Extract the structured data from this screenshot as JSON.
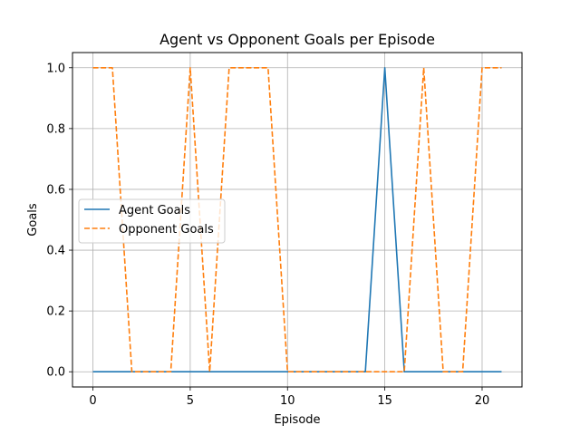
{
  "chart_data": {
    "type": "line",
    "title": "Agent vs Opponent Goals per Episode",
    "xlabel": "Episode",
    "ylabel": "Goals",
    "xlim": [
      -1.05,
      22.05
    ],
    "ylim": [
      -0.05,
      1.05
    ],
    "xticks": [
      0,
      5,
      10,
      15,
      20
    ],
    "yticks": [
      0.0,
      0.2,
      0.4,
      0.6,
      0.8,
      1.0
    ],
    "xtick_labels": [
      "0",
      "5",
      "10",
      "15",
      "20"
    ],
    "ytick_labels": [
      "0.0",
      "0.2",
      "0.4",
      "0.6",
      "0.8",
      "1.0"
    ],
    "grid": true,
    "legend_position": "center-left",
    "x": [
      0,
      1,
      2,
      3,
      4,
      5,
      6,
      7,
      8,
      9,
      10,
      11,
      12,
      13,
      14,
      15,
      16,
      17,
      18,
      19,
      20,
      21
    ],
    "series": [
      {
        "name": "Agent Goals",
        "color": "#1f77b4",
        "style": "solid",
        "values": [
          0,
          0,
          0,
          0,
          0,
          0,
          0,
          0,
          0,
          0,
          0,
          0,
          0,
          0,
          0,
          1,
          0,
          0,
          0,
          0,
          0,
          0
        ]
      },
      {
        "name": "Opponent Goals",
        "color": "#ff7f0e",
        "style": "dashed",
        "values": [
          1,
          1,
          0,
          0,
          0,
          1,
          0,
          1,
          1,
          1,
          0,
          0,
          0,
          0,
          0,
          0,
          0,
          1,
          0,
          0,
          1,
          1
        ]
      }
    ]
  }
}
